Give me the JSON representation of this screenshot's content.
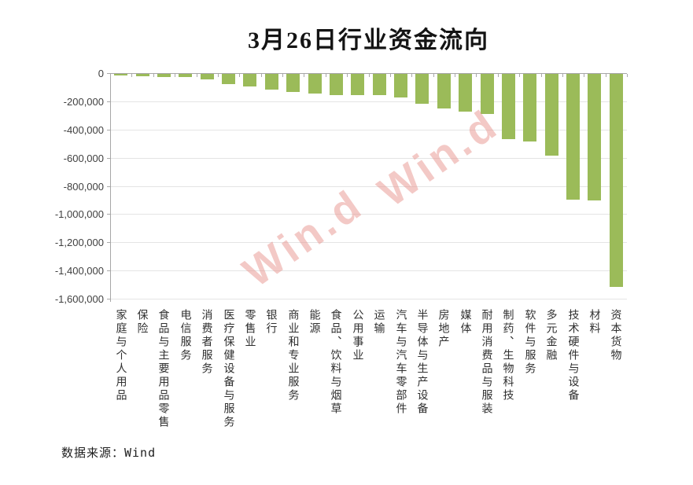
{
  "title": "3月26日行业资金流向",
  "source": "数据来源：Wind",
  "watermark": {
    "text": "Win.d",
    "color_rgba": "rgba(232,148,142,0.5)"
  },
  "colors": {
    "bar": "#9bbb59",
    "axis": "#a6a6a6",
    "grid": "#e4e4e4",
    "title_text": "#141414",
    "tick_label_text": "#3f3f3f",
    "category_label_text": "#303030",
    "background": "#ffffff"
  },
  "chart_data": {
    "type": "bar",
    "title": "3月26日行业资金流向",
    "xlabel": "",
    "ylabel": "",
    "grid": true,
    "legend": false,
    "ylim": [
      -1600000,
      0
    ],
    "ytick_interval": 200000,
    "ytick_labels": [
      "0",
      "-200,000",
      "-400,000",
      "-600,000",
      "-800,000",
      "-1,000,000",
      "-1,200,000",
      "-1,400,000",
      "-1,600,000"
    ],
    "categories": [
      "家庭与个人用品",
      "保险",
      "食品与主要用品零售",
      "电信服务",
      "消费者服务",
      "医疗保健设备与服务",
      "零售业",
      "银行",
      "商业和专业服务",
      "能源",
      "食品、饮料与烟草",
      "公用事业",
      "运输",
      "汽车与汽车零部件",
      "半导体与生产设备",
      "房地产",
      "媒体",
      "耐用消费品与服装",
      "制药、生物科技",
      "软件与服务",
      "多元金融",
      "技术硬件与设备",
      "材料",
      "资本货物"
    ],
    "values": [
      -12000,
      -15000,
      -20000,
      -25000,
      -40000,
      -75000,
      -90000,
      -110000,
      -130000,
      -140000,
      -148000,
      -150000,
      -152000,
      -170000,
      -210000,
      -245000,
      -268000,
      -285000,
      -460000,
      -480000,
      -580000,
      -890000,
      -900000,
      -1510000
    ],
    "bar_color": "#9bbb59",
    "annotations": [
      "Win.d",
      "Win.d"
    ]
  }
}
